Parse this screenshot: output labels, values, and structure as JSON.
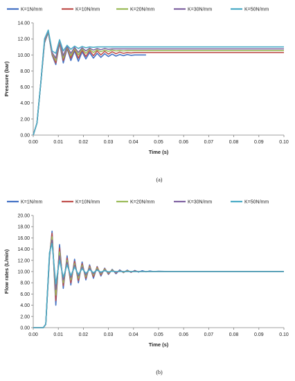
{
  "chart_data": [
    {
      "type": "line",
      "caption": "(a)",
      "xlabel": "Time (s)",
      "ylabel": "Pressure (bar)",
      "xlim": [
        0.0,
        0.1
      ],
      "ylim": [
        0.0,
        14.0
      ],
      "xticks": [
        "0.00",
        "0.01",
        "0.02",
        "0.03",
        "0.04",
        "0.05",
        "0.06",
        "0.07",
        "0.08",
        "0.09",
        "0.10"
      ],
      "yticks": [
        "0.00",
        "2.00",
        "4.00",
        "6.00",
        "8.00",
        "10.00",
        "12.00",
        "14.00"
      ],
      "grid": false,
      "legend_position": "top",
      "series": [
        {
          "name": "K=1N/mm",
          "color": "#4472C4",
          "x": [
            0,
            0.0015,
            0.003,
            0.0045,
            0.006,
            0.0075,
            0.009,
            0.0105,
            0.012,
            0.0135,
            0.015,
            0.0165,
            0.018,
            0.0195,
            0.021,
            0.0225,
            0.024,
            0.0255,
            0.027,
            0.0285,
            0.03,
            0.0315,
            0.033,
            0.0345,
            0.036,
            0.0375,
            0.039,
            0.0405,
            0.042,
            0.0435,
            0.045
          ],
          "y": [
            0,
            1.5,
            6.5,
            11.5,
            12.8,
            10.0,
            8.8,
            11.5,
            9.0,
            10.8,
            9.3,
            10.5,
            9.2,
            10.4,
            9.5,
            10.3,
            9.6,
            10.2,
            9.7,
            10.15,
            9.8,
            10.1,
            9.85,
            10.05,
            9.9,
            10.05,
            9.95,
            10.0,
            10.0,
            10.0,
            10.0
          ]
        },
        {
          "name": "K=10N/mm",
          "color": "#C0504D",
          "x": [
            0,
            0.0015,
            0.003,
            0.0045,
            0.006,
            0.0075,
            0.009,
            0.0105,
            0.012,
            0.0135,
            0.015,
            0.0165,
            0.018,
            0.0195,
            0.021,
            0.0225,
            0.024,
            0.0255,
            0.027,
            0.0285,
            0.03,
            0.0315,
            0.033,
            0.0345,
            0.036,
            0.0375,
            0.039,
            0.0405,
            0.042,
            0.0435,
            0.045,
            0.1
          ],
          "y": [
            0,
            1.5,
            6.5,
            11.6,
            12.9,
            10.1,
            9.0,
            11.6,
            9.3,
            10.9,
            9.6,
            10.7,
            9.6,
            10.6,
            9.8,
            10.55,
            9.9,
            10.5,
            10.0,
            10.45,
            10.1,
            10.4,
            10.15,
            10.35,
            10.2,
            10.3,
            10.25,
            10.3,
            10.3,
            10.3,
            10.3,
            10.3
          ]
        },
        {
          "name": "K=20N/mm",
          "color": "#9BBB59",
          "x": [
            0,
            0.0015,
            0.003,
            0.0045,
            0.006,
            0.0075,
            0.009,
            0.0105,
            0.012,
            0.0135,
            0.015,
            0.0165,
            0.018,
            0.0195,
            0.021,
            0.0225,
            0.024,
            0.0255,
            0.027,
            0.0285,
            0.03,
            0.0315,
            0.033,
            0.0345,
            0.036,
            0.0375,
            0.039,
            0.0405,
            0.042,
            0.0435,
            0.045,
            0.1
          ],
          "y": [
            0,
            1.5,
            6.5,
            11.7,
            12.9,
            10.2,
            9.3,
            11.7,
            9.6,
            11.0,
            9.9,
            10.8,
            10.0,
            10.75,
            10.2,
            10.7,
            10.3,
            10.65,
            10.4,
            10.6,
            10.45,
            10.6,
            10.5,
            10.55,
            10.5,
            10.55,
            10.55,
            10.55,
            10.55,
            10.55,
            10.55,
            10.55
          ]
        },
        {
          "name": "K=30N/mm",
          "color": "#8064A2",
          "x": [
            0,
            0.0015,
            0.003,
            0.0045,
            0.006,
            0.0075,
            0.009,
            0.0105,
            0.012,
            0.0135,
            0.015,
            0.0165,
            0.018,
            0.0195,
            0.021,
            0.0225,
            0.024,
            0.0255,
            0.027,
            0.0285,
            0.03,
            0.0315,
            0.033,
            0.0345,
            0.036,
            0.0375,
            0.039,
            0.0405,
            0.042,
            0.1
          ],
          "y": [
            0,
            1.5,
            6.5,
            11.8,
            13.0,
            10.3,
            9.6,
            11.8,
            9.9,
            11.1,
            10.2,
            10.95,
            10.3,
            10.9,
            10.5,
            10.85,
            10.6,
            10.8,
            10.65,
            10.8,
            10.7,
            10.75,
            10.75,
            10.75,
            10.75,
            10.75,
            10.75,
            10.75,
            10.75,
            10.75
          ]
        },
        {
          "name": "K=50N/mm",
          "color": "#4BACC6",
          "x": [
            0,
            0.0015,
            0.003,
            0.0045,
            0.006,
            0.0075,
            0.009,
            0.0105,
            0.012,
            0.0135,
            0.015,
            0.0165,
            0.018,
            0.0195,
            0.021,
            0.0225,
            0.024,
            0.0255,
            0.027,
            0.1
          ],
          "y": [
            0,
            1.5,
            6.5,
            12.0,
            13.1,
            10.5,
            10.2,
            11.9,
            10.5,
            11.2,
            10.7,
            11.1,
            10.8,
            11.05,
            10.9,
            11.0,
            10.95,
            11.0,
            11.0,
            11.0
          ]
        }
      ]
    },
    {
      "type": "line",
      "caption": "(b)",
      "xlabel": "Time (s)",
      "ylabel": "Flow rates (L/min)",
      "xlim": [
        0.0,
        0.1
      ],
      "ylim": [
        0.0,
        20.0
      ],
      "xticks": [
        "0.00",
        "0.01",
        "0.02",
        "0.03",
        "0.04",
        "0.05",
        "0.06",
        "0.07",
        "0.08",
        "0.09",
        "0.10"
      ],
      "yticks": [
        "0.00",
        "2.00",
        "4.00",
        "6.00",
        "8.00",
        "10.00",
        "12.00",
        "14.00",
        "16.00",
        "18.00",
        "20.00"
      ],
      "grid": false,
      "legend_position": "top",
      "series": [
        {
          "name": "K=1N/mm",
          "color": "#4472C4",
          "x": [
            0,
            0.004,
            0.005,
            0.0065,
            0.0075,
            0.009,
            0.0105,
            0.012,
            0.0135,
            0.015,
            0.0165,
            0.018,
            0.0195,
            0.021,
            0.0225,
            0.024,
            0.0255,
            0.027,
            0.0285,
            0.03,
            0.0315,
            0.033,
            0.0345,
            0.036,
            0.0375,
            0.039,
            0.0405,
            0.042,
            0.0435,
            0.045,
            0.0465,
            0.048,
            0.05,
            0.055,
            0.1
          ],
          "y": [
            0,
            0,
            0.6,
            12.5,
            17.2,
            4.0,
            14.8,
            7.0,
            12.8,
            7.6,
            12.2,
            8.0,
            11.7,
            8.5,
            11.2,
            8.8,
            10.9,
            9.2,
            10.6,
            9.5,
            10.4,
            9.6,
            10.3,
            9.8,
            10.25,
            9.85,
            10.2,
            9.9,
            10.15,
            9.95,
            10.1,
            10.0,
            10.05,
            10.0,
            10.0
          ]
        },
        {
          "name": "K=10N/mm",
          "color": "#C0504D",
          "x": [
            0,
            0.004,
            0.005,
            0.0065,
            0.0075,
            0.009,
            0.0105,
            0.012,
            0.0135,
            0.015,
            0.0165,
            0.018,
            0.0195,
            0.021,
            0.0225,
            0.024,
            0.0255,
            0.027,
            0.0285,
            0.03,
            0.0315,
            0.033,
            0.0345,
            0.036,
            0.0375,
            0.039,
            0.0405,
            0.042,
            0.045,
            0.1
          ],
          "y": [
            0,
            0,
            0.6,
            12.8,
            16.8,
            4.8,
            14.2,
            7.5,
            12.4,
            8.0,
            11.8,
            8.4,
            11.4,
            8.8,
            11.0,
            9.1,
            10.8,
            9.4,
            10.5,
            9.6,
            10.3,
            9.75,
            10.2,
            9.85,
            10.15,
            9.9,
            10.1,
            10.0,
            10.0,
            10.0
          ]
        },
        {
          "name": "K=20N/mm",
          "color": "#9BBB59",
          "x": [
            0,
            0.004,
            0.005,
            0.0065,
            0.0075,
            0.009,
            0.0105,
            0.012,
            0.0135,
            0.015,
            0.0165,
            0.018,
            0.0195,
            0.021,
            0.0225,
            0.024,
            0.0255,
            0.027,
            0.0285,
            0.03,
            0.0315,
            0.033,
            0.0345,
            0.036,
            0.0375,
            0.039,
            0.042,
            0.1
          ],
          "y": [
            0,
            0,
            0.6,
            13.0,
            16.2,
            5.8,
            13.5,
            8.0,
            12.0,
            8.5,
            11.4,
            8.8,
            11.1,
            9.1,
            10.8,
            9.4,
            10.6,
            9.6,
            10.4,
            9.75,
            10.25,
            9.85,
            10.15,
            9.9,
            10.1,
            10.0,
            10.0,
            10.0
          ]
        },
        {
          "name": "K=30N/mm",
          "color": "#8064A2",
          "x": [
            0,
            0.004,
            0.005,
            0.0065,
            0.0075,
            0.009,
            0.0105,
            0.012,
            0.0135,
            0.015,
            0.0165,
            0.018,
            0.0195,
            0.021,
            0.0225,
            0.024,
            0.0255,
            0.027,
            0.0285,
            0.03,
            0.0315,
            0.033,
            0.0345,
            0.036,
            0.039,
            0.1
          ],
          "y": [
            0,
            0,
            0.6,
            13.2,
            15.6,
            6.8,
            12.8,
            8.5,
            11.6,
            8.9,
            11.1,
            9.2,
            10.8,
            9.4,
            10.6,
            9.6,
            10.4,
            9.75,
            10.25,
            9.85,
            10.15,
            9.9,
            10.1,
            10.0,
            10.0,
            10.0
          ]
        },
        {
          "name": "K=50N/mm",
          "color": "#4BACC6",
          "x": [
            0,
            0.004,
            0.005,
            0.0065,
            0.0075,
            0.009,
            0.0105,
            0.012,
            0.0135,
            0.015,
            0.0165,
            0.018,
            0.0195,
            0.021,
            0.0225,
            0.024,
            0.0255,
            0.027,
            0.0285,
            0.03,
            0.0315,
            0.033,
            0.036,
            0.1
          ],
          "y": [
            0,
            0,
            0.6,
            13.4,
            15.0,
            7.8,
            12.0,
            9.0,
            11.2,
            9.3,
            10.8,
            9.5,
            10.5,
            9.7,
            10.35,
            9.8,
            10.25,
            9.9,
            10.15,
            9.95,
            10.05,
            10.0,
            10.0,
            10.0
          ]
        }
      ]
    }
  ]
}
